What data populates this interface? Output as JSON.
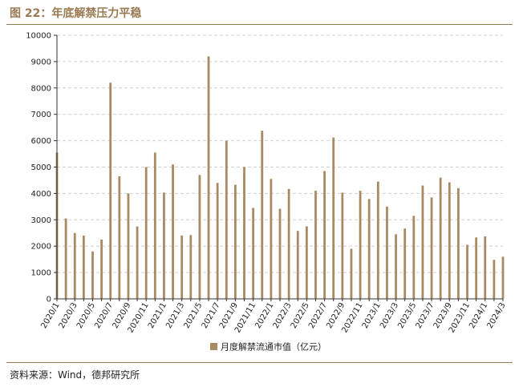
{
  "figure": {
    "title": "图 22：年底解禁压力平稳",
    "source": "资料来源：Wind，德邦研究所"
  },
  "chart_data": {
    "type": "bar",
    "legend": {
      "placement": "bottom",
      "entries": [
        "月度解禁流通市值（亿元）"
      ]
    },
    "grid": true,
    "ylim": [
      0,
      10000
    ],
    "yticks": [
      0,
      1000,
      2000,
      3000,
      4000,
      5000,
      6000,
      7000,
      8000,
      9000,
      10000
    ],
    "xtick_labels": [
      "2020/1",
      "2020/3",
      "2020/5",
      "2020/7",
      "2020/9",
      "2020/11",
      "2021/1",
      "2021/3",
      "2021/5",
      "2021/7",
      "2021/9",
      "2021/11",
      "2022/1",
      "2022/3",
      "2022/5",
      "2022/7",
      "2022/9",
      "2022/11",
      "2023/1",
      "2023/3",
      "2023/5",
      "2023/7",
      "2023/9",
      "2023/11",
      "2024/1",
      "2024/3"
    ],
    "categories": [
      "2020/1",
      "2020/2",
      "2020/3",
      "2020/4",
      "2020/5",
      "2020/6",
      "2020/7",
      "2020/8",
      "2020/9",
      "2020/10",
      "2020/11",
      "2020/12",
      "2021/1",
      "2021/2",
      "2021/3",
      "2021/4",
      "2021/5",
      "2021/6",
      "2021/7",
      "2021/8",
      "2021/9",
      "2021/10",
      "2021/11",
      "2021/12",
      "2022/1",
      "2022/2",
      "2022/3",
      "2022/4",
      "2022/5",
      "2022/6",
      "2022/7",
      "2022/8",
      "2022/9",
      "2022/10",
      "2022/11",
      "2022/12",
      "2023/1",
      "2023/2",
      "2023/3",
      "2023/4",
      "2023/5",
      "2023/6",
      "2023/7",
      "2023/8",
      "2023/9",
      "2023/10",
      "2023/11",
      "2023/12",
      "2024/1",
      "2024/2",
      "2024/3"
    ],
    "series": [
      {
        "name": "月度解禁流通市值（亿元）",
        "color": "#a98b63",
        "values": [
          5550,
          3050,
          2500,
          2400,
          1800,
          2250,
          8200,
          4650,
          4000,
          2750,
          5000,
          5550,
          4030,
          5100,
          2400,
          2420,
          4700,
          9200,
          4400,
          6000,
          4330,
          5000,
          3450,
          6380,
          4550,
          3420,
          4170,
          2580,
          2750,
          4100,
          4850,
          6120,
          4030,
          1900,
          4100,
          3790,
          4450,
          3500,
          2450,
          2670,
          3150,
          4300,
          3850,
          4600,
          4420,
          4200,
          2050,
          2330,
          2370,
          1480,
          1600
        ]
      }
    ]
  }
}
